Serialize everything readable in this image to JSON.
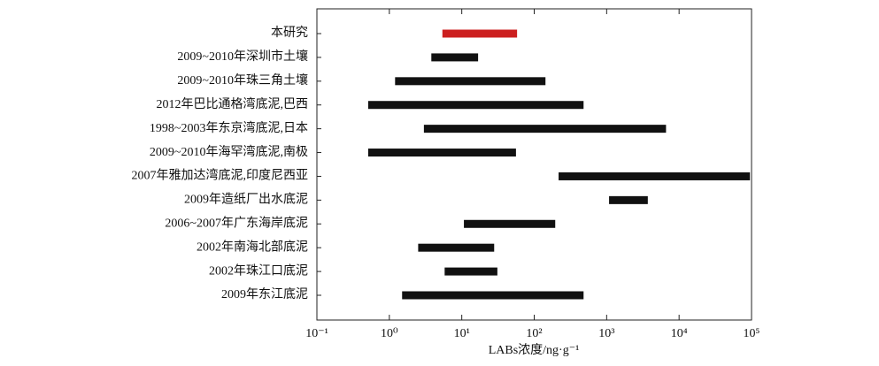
{
  "chart_data": {
    "type": "range_bar",
    "categories": [
      "本研究",
      "2009~2010年深圳市土壤",
      "2009~2010年珠三角土壤",
      "2012年巴比通格湾底泥,巴西",
      "1998~2003年东京湾底泥,日本",
      "2009~2010年海罕湾底泥,南极",
      "2007年雅加达湾底泥,印度尼西亚",
      "2009年造纸厂出水底泥",
      "2006~2007年广东海岸底泥",
      "2002年南海北部底泥",
      "2002年珠江口底泥",
      "2009年东江底泥"
    ],
    "low": [
      5.4,
      3.8,
      1.2,
      0.51,
      3.0,
      0.51,
      217,
      1080,
      10.7,
      2.5,
      5.8,
      1.5
    ],
    "high": [
      58,
      16.8,
      143,
      480,
      6600,
      56,
      95000,
      3700,
      195,
      28,
      31,
      480
    ],
    "colors": [
      "#cc1f1f",
      "#111111",
      "#111111",
      "#111111",
      "#111111",
      "#111111",
      "#111111",
      "#111111",
      "#111111",
      "#111111",
      "#111111",
      "#111111"
    ],
    "x_label": "LABs浓度/ng·g⁻¹",
    "xscale": "log",
    "xlim": [
      0.1,
      100000
    ],
    "xticks": [
      {
        "value": 0.1,
        "label": "10⁻¹"
      },
      {
        "value": 1,
        "label": "10⁰"
      },
      {
        "value": 10,
        "label": "10¹"
      },
      {
        "value": 100,
        "label": "10²"
      },
      {
        "value": 1000,
        "label": "10³"
      },
      {
        "value": 10000,
        "label": "10⁴"
      },
      {
        "value": 100000,
        "label": "10⁵"
      }
    ]
  }
}
